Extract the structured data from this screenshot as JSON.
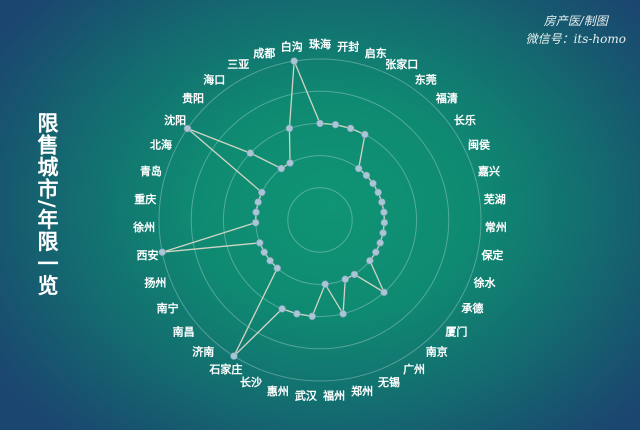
{
  "title": "限售城市/年限一览",
  "credit": {
    "line1": "房产医/制图",
    "line2": "微信号：its-homo"
  },
  "colors": {
    "ring": "#ffffff",
    "line": "#d0d4c4",
    "point": "#a9c6d6"
  },
  "chart_data": {
    "type": "radar",
    "title": "限售城市/年限一览",
    "rings": [
      1,
      2,
      3,
      4,
      5
    ],
    "range": [
      0,
      5
    ],
    "grid": true,
    "categories": [
      "珠海",
      "开封",
      "启东",
      "张家口",
      "东莞",
      "福清",
      "长乐",
      "闽侯",
      "嘉兴",
      "芜湖",
      "常州",
      "保定",
      "徐水",
      "承德",
      "厦门",
      "南京",
      "广州",
      "无锡",
      "郑州",
      "福州",
      "武汉",
      "惠州",
      "长沙",
      "石家庄",
      "济南",
      "南昌",
      "南宁",
      "扬州",
      "西安",
      "徐州",
      "重庆",
      "青岛",
      "北海",
      "沈阳",
      "贵阳",
      "海口",
      "三亚",
      "成都",
      "白沟"
    ],
    "values": [
      3,
      3,
      3,
      3,
      2,
      2,
      2,
      2,
      2,
      2,
      2,
      2,
      2,
      2,
      2,
      3,
      2,
      2,
      3,
      2,
      3,
      3,
      3,
      5,
      2,
      2,
      2,
      2,
      5,
      2,
      2,
      2,
      2,
      5,
      3,
      2,
      2,
      3,
      5
    ]
  }
}
